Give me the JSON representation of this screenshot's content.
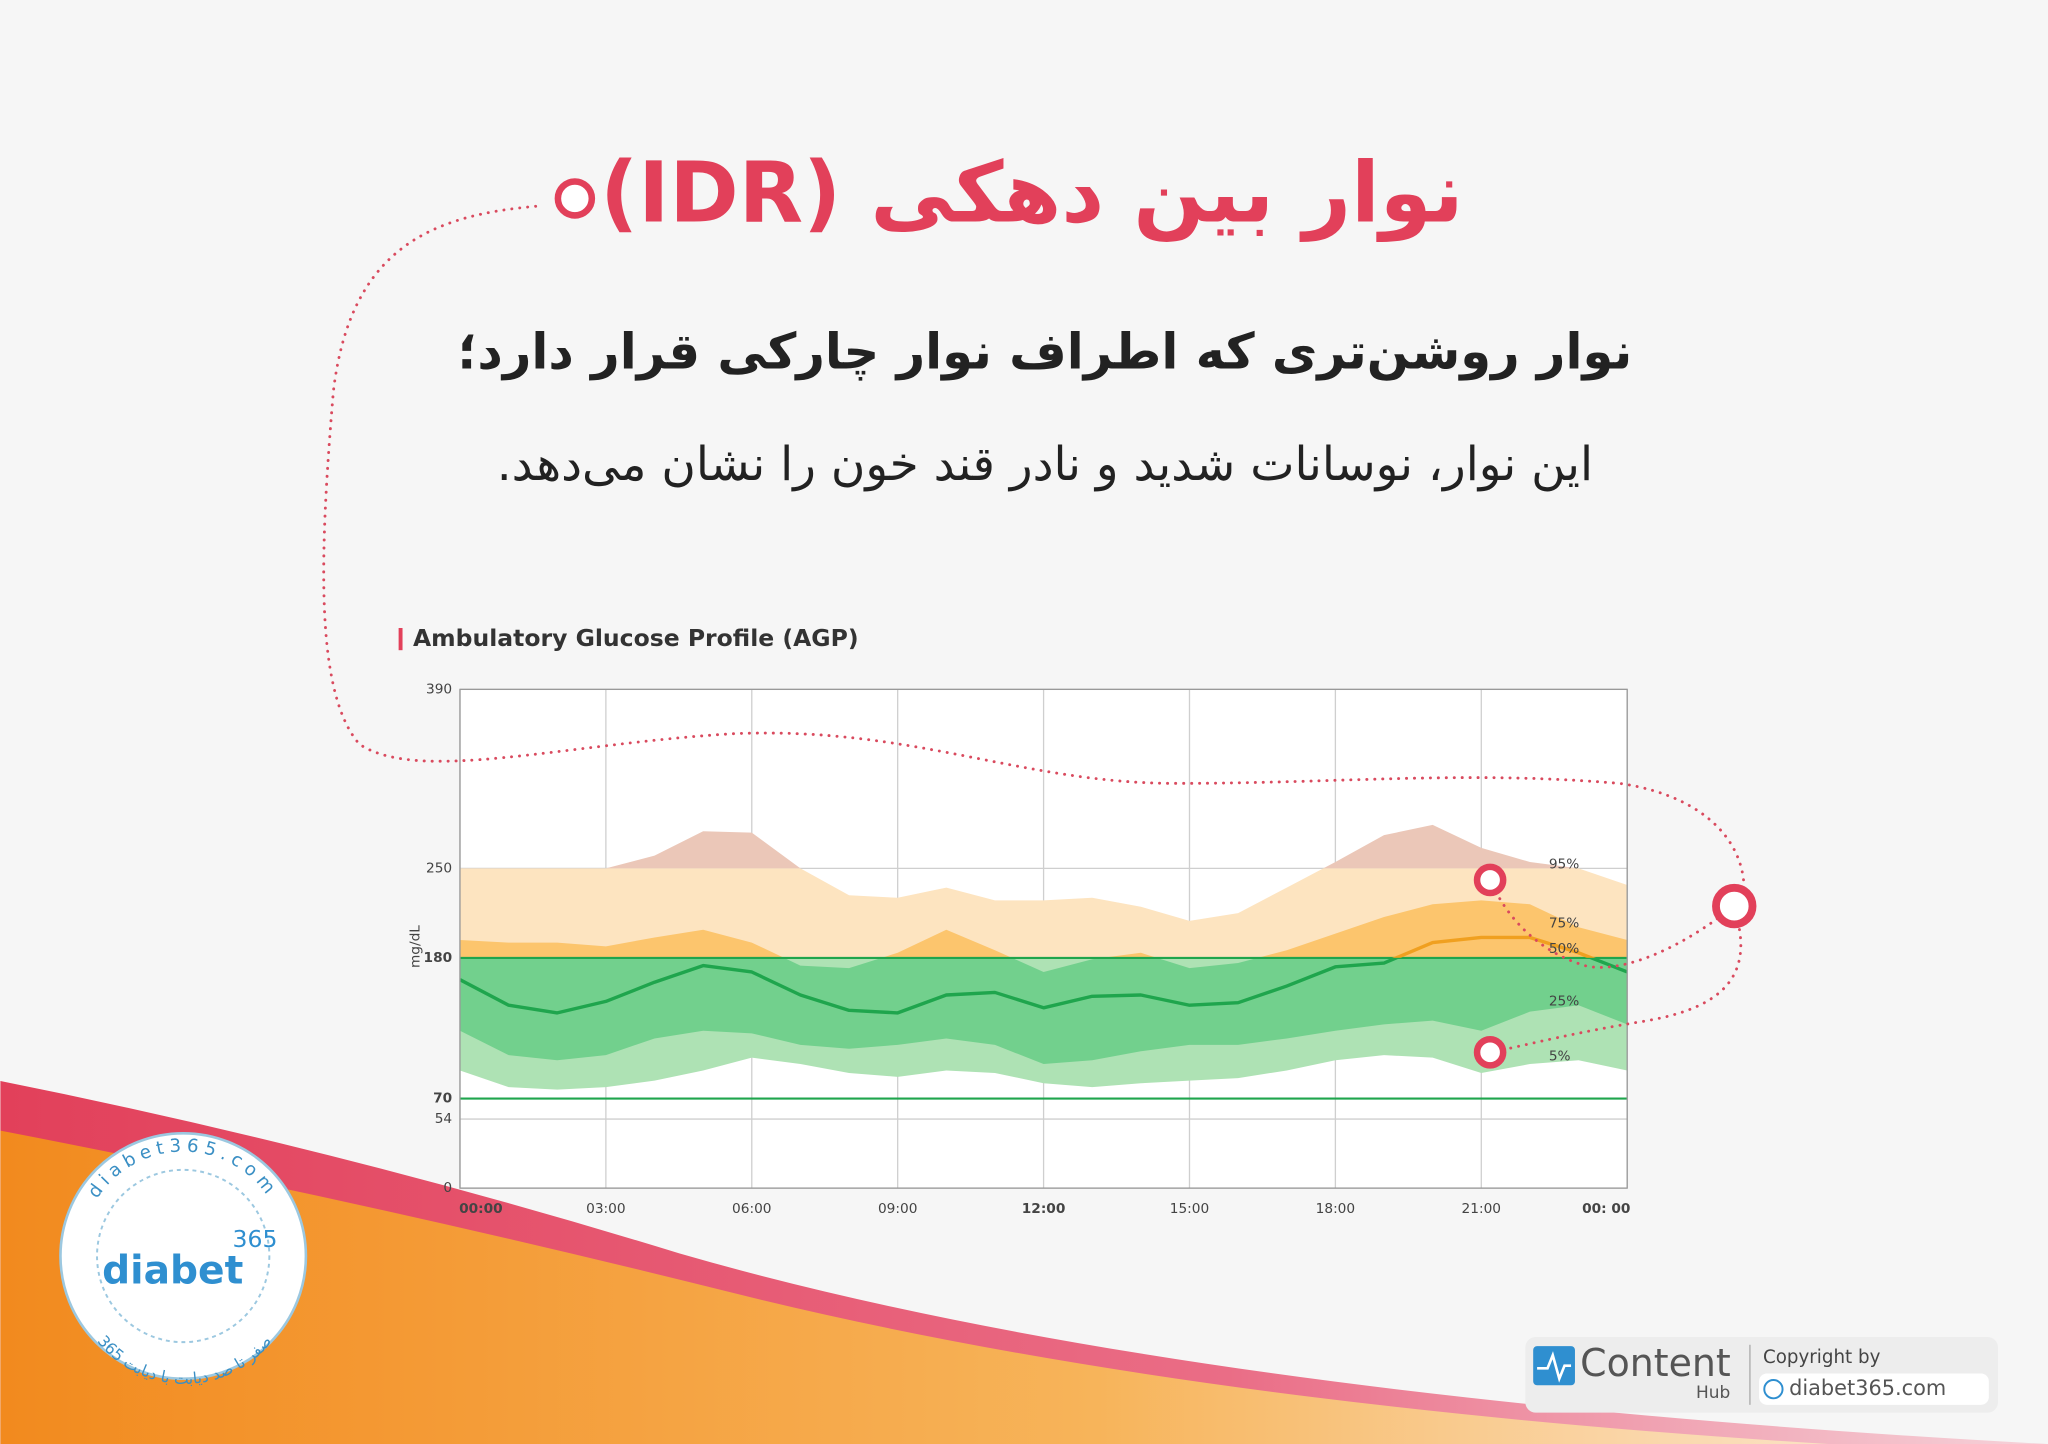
{
  "header": {
    "title": "نوار بین دهکی (IDR)",
    "subtitle": "نوار روشن‌تری که اطراف نوار چارکی قرار دارد؛",
    "description": "این نوار، نوسانات شدید و نادر قند خون را نشان می‌دهد."
  },
  "chart_data": {
    "type": "agp",
    "title": "Ambulatory Glucose Profile (AGP)",
    "y_label": "mg/dL",
    "x": [
      0,
      1,
      2,
      3,
      4,
      5,
      6,
      7,
      8,
      9,
      10,
      11,
      12,
      13,
      14,
      15,
      16,
      17,
      18,
      19,
      20,
      21,
      22,
      23,
      24
    ],
    "xlim": [
      0,
      24
    ],
    "xticks": [
      {
        "value": 0,
        "label": "00:00"
      },
      {
        "value": 3,
        "label": "03:00"
      },
      {
        "value": 6,
        "label": "06:00"
      },
      {
        "value": 9,
        "label": "09:00"
      },
      {
        "value": 12,
        "label": "12:00"
      },
      {
        "value": 15,
        "label": "15:00"
      },
      {
        "value": 18,
        "label": "18:00"
      },
      {
        "value": 21,
        "label": "21:00"
      },
      {
        "value": 24,
        "label": "00: 00"
      }
    ],
    "ylim": [
      0,
      390
    ],
    "yticks": [
      0,
      54,
      70,
      180,
      250,
      390
    ],
    "target_range": [
      70,
      180
    ],
    "grid": true,
    "series": [
      {
        "name": "95%",
        "values": [
          250,
          250,
          250,
          250,
          260,
          279,
          278,
          250,
          229,
          227,
          235,
          225,
          225,
          227,
          220,
          209,
          215,
          235,
          255,
          276,
          284,
          266,
          255,
          250,
          237
        ]
      },
      {
        "name": "75%",
        "values": [
          194,
          192,
          192,
          189,
          196,
          202,
          192,
          174,
          172,
          184,
          202,
          186,
          169,
          179,
          184,
          172,
          176,
          186,
          199,
          212,
          222,
          225,
          222,
          204,
          194
        ]
      },
      {
        "name": "50%",
        "values": [
          163,
          143,
          137,
          146,
          161,
          174,
          169,
          151,
          139,
          137,
          151,
          153,
          141,
          150,
          151,
          143,
          145,
          158,
          173,
          176,
          192,
          196,
          196,
          184,
          169
        ]
      },
      {
        "name": "25%",
        "values": [
          123,
          104,
          100,
          104,
          117,
          123,
          121,
          112,
          109,
          112,
          117,
          112,
          97,
          100,
          107,
          112,
          112,
          117,
          123,
          128,
          131,
          123,
          138,
          143,
          128
        ]
      },
      {
        "name": "5%",
        "values": [
          92,
          79,
          77,
          79,
          84,
          92,
          102,
          97,
          90,
          87,
          92,
          90,
          82,
          79,
          82,
          84,
          86,
          92,
          100,
          104,
          102,
          90,
          97,
          100,
          92
        ]
      }
    ]
  },
  "logo": {
    "name": "diabet",
    "number": "365",
    "ring_text": "diabet365.com",
    "tagline": "صفر تا صد دیابت با دیابت 365"
  },
  "footer": {
    "brand": "Content",
    "brand_sub": "Hub",
    "copyright": "Copyright by",
    "website": "diabet365.com"
  }
}
